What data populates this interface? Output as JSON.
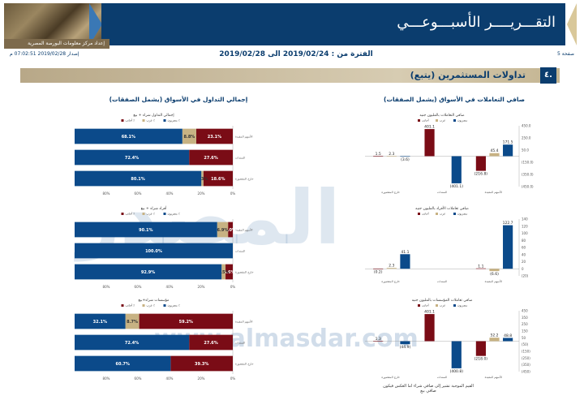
{
  "header": {
    "title": "التقـــريــــر الأسبـــوعـــي",
    "subtitle": "إعداد مركز معلومات البورصة المصرية",
    "page": "صفحة 5",
    "issue_date": "إصدار 2019/02/28 07:02:51 م",
    "period": "الفترة من : 2019/02/24 الى 2019/02/28"
  },
  "section": {
    "number": "٤.",
    "title": "تداولات المستثمرين (يتبع)"
  },
  "right_panel_title": "صافي التعاملات في الأسواق (يشمل الصفقات)",
  "left_panel_title": "إجمالي التداول في الأسواق (يشمل الصفقات)",
  "footnote": "القيم الموجبة تشير إلى صافي شراء اما العكس فيكون صافي بيع",
  "watermark": {
    "main": "المصدر",
    "url": "www.almasdar.com"
  },
  "colors": {
    "egyptians": "#0b4a8a",
    "arabs": "#c7b283",
    "foreigners": "#7a0c16",
    "dark_blue": "#0b3d6e",
    "gold": "#c4b592"
  },
  "legend": {
    "egyptians": "مصريون ٪",
    "arabs": "عرب ٪",
    "foreigners": "أجانب ٪"
  },
  "legend_net": {
    "egyptians": "مصريون",
    "arabs": "عرب",
    "foreigners": "أجانب"
  },
  "chart_data": [
    {
      "type": "bar",
      "subtitle": "صافي التعاملات بالمليون جنيه",
      "categories": [
        "الأسهم المقيدة",
        "السندات",
        "خارج المقصورة"
      ],
      "series": [
        {
          "name": "مصريون",
          "values": [
            171.5,
            -401.1,
            -3.6
          ]
        },
        {
          "name": "عرب",
          "values": [
            45.4,
            null,
            2.3
          ]
        },
        {
          "name": "أجانب",
          "values": [
            -216.8,
            401.1,
            1.5
          ]
        }
      ],
      "value_labels": [
        [
          "171.5",
          "45.4",
          "(216.8)"
        ],
        [
          "(401.1)",
          "",
          "401.1"
        ],
        [
          "(3.6)",
          "2.3",
          "1.5"
        ]
      ],
      "yticks": [
        "450.0",
        "250.0",
        "50.0",
        "(150.0)",
        "(350.0)",
        "(450.0)"
      ],
      "ylim": [
        -450,
        450
      ]
    },
    {
      "type": "bar",
      "subtitle": "صافي تعاملات الأفراد بالمليون جنيه",
      "categories": [
        "الأسهم المقيدة",
        "السندات",
        "خارج المقصورة"
      ],
      "series": [
        {
          "name": "مصريون",
          "values": [
            122.7,
            null,
            41.1
          ]
        },
        {
          "name": "عرب",
          "values": [
            -6.6,
            null,
            2.3
          ]
        },
        {
          "name": "أجانب",
          "values": [
            1.1,
            null,
            -0.2
          ]
        }
      ],
      "value_labels": [
        [
          "122.7",
          "(6.6)",
          "1.1"
        ],
        [
          "",
          "",
          ""
        ],
        [
          "41.1",
          "2.3",
          "(0.2)"
        ]
      ],
      "yticks": [
        "140",
        "120",
        "100",
        "80",
        "60",
        "40",
        "20",
        "0",
        "(20)"
      ],
      "ylim": [
        -20,
        140
      ]
    },
    {
      "type": "bar",
      "subtitle": "صافي تعاملات المؤسسات بالمليون جنيه",
      "categories": [
        "الأسهم المقيدة",
        "السندات",
        "خارج المقصورة"
      ],
      "series": [
        {
          "name": "مصريون",
          "values": [
            48.8,
            -400.8,
            -44.9
          ]
        },
        {
          "name": "عرب",
          "values": [
            52.2,
            null,
            null
          ]
        },
        {
          "name": "أجانب",
          "values": [
            -218.0,
            401.1,
            1.3
          ]
        }
      ],
      "value_labels": [
        [
          "48.8",
          "52.2",
          "(218.0)"
        ],
        [
          "(400.8)",
          "",
          "401.1"
        ],
        [
          "(44.9)",
          "",
          "1.3"
        ]
      ],
      "yticks": [
        "450",
        "350",
        "250",
        "150",
        "50",
        "(50)",
        "(150)",
        "(250)",
        "(350)",
        "(450)"
      ],
      "ylim": [
        -450,
        450
      ]
    },
    {
      "type": "bar",
      "subtitle": "إجمالي التداول شراء + بيع",
      "orientation": "horizontal-stacked-100",
      "categories": [
        "الأسهم المقيدة",
        "السندات",
        "خارج المقصورة"
      ],
      "series": [
        {
          "name": "مصريون ٪",
          "values": [
            68.1,
            72.4,
            80.1
          ]
        },
        {
          "name": "عرب ٪",
          "values": [
            8.8,
            0.0,
            1.3
          ]
        },
        {
          "name": "أجانب ٪",
          "values": [
            23.1,
            27.6,
            18.6
          ]
        }
      ],
      "xticks": [
        "80%",
        "60%",
        "40%",
        "20%",
        "0%"
      ]
    },
    {
      "type": "bar",
      "subtitle": "أفراد شراء + بيع",
      "orientation": "horizontal-stacked-100",
      "categories": [
        "الأسهم المقيدة",
        "السندات",
        "خارج المقصورة"
      ],
      "series": [
        {
          "name": "مصريون ٪",
          "values": [
            90.1,
            100.0,
            92.9
          ]
        },
        {
          "name": "عرب ٪",
          "values": [
            6.9,
            0.0,
            2.5
          ]
        },
        {
          "name": "أجانب ٪",
          "values": [
            3.0,
            0.0,
            4.6
          ]
        }
      ],
      "xticks": [
        "80%",
        "60%",
        "40%",
        "20%",
        "0%"
      ]
    },
    {
      "type": "bar",
      "subtitle": "مؤسسات شراء+بيع",
      "orientation": "horizontal-stacked-100",
      "categories": [
        "الأسهم المقيدة",
        "السندات",
        "خارج المقصورة"
      ],
      "series": [
        {
          "name": "مصريون ٪",
          "values": [
            32.1,
            72.4,
            60.7
          ]
        },
        {
          "name": "عرب ٪",
          "values": [
            8.7,
            0.0,
            0.0
          ]
        },
        {
          "name": "أجانب ٪",
          "values": [
            59.2,
            27.6,
            39.3
          ]
        }
      ],
      "xticks": [
        "80%",
        "60%",
        "40%",
        "20%",
        "0%"
      ]
    }
  ]
}
